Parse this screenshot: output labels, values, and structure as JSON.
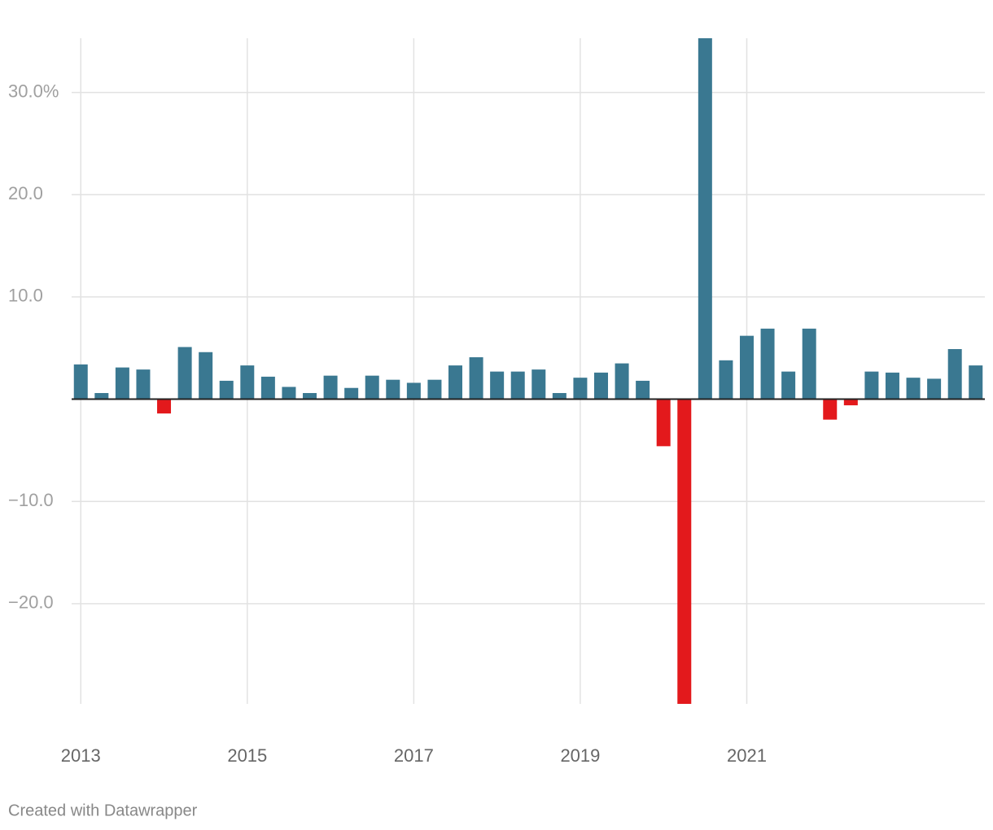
{
  "chart_data": {
    "type": "bar",
    "x": [
      2013,
      2013.25,
      2013.5,
      2013.75,
      2014,
      2014.25,
      2014.5,
      2014.75,
      2015,
      2015.25,
      2015.5,
      2015.75,
      2016,
      2016.25,
      2016.5,
      2016.75,
      2017,
      2017.25,
      2017.5,
      2017.75,
      2018,
      2018.25,
      2018.5,
      2018.75,
      2019,
      2019.25,
      2019.5,
      2019.75,
      2020,
      2020.25,
      2020.5,
      2020.75,
      2021,
      2021.25,
      2021.5,
      2021.75,
      2022,
      2022.25,
      2022.5,
      2022.75,
      2023,
      2023.25,
      2023.5,
      2023.75
    ],
    "values": [
      3.4,
      0.6,
      3.1,
      2.9,
      -1.4,
      5.1,
      4.6,
      1.8,
      3.3,
      2.2,
      1.2,
      0.6,
      2.3,
      1.1,
      2.3,
      1.9,
      1.6,
      1.9,
      3.3,
      4.1,
      2.7,
      2.7,
      2.9,
      0.6,
      2.1,
      2.6,
      3.5,
      1.8,
      -4.6,
      -29.8,
      35.3,
      3.8,
      6.2,
      6.9,
      2.7,
      6.9,
      -2.0,
      -0.6,
      2.7,
      2.6,
      2.1,
      2.0,
      4.9,
      3.3
    ],
    "positive_color": "#3a7891",
    "negative_color": "#e3191c",
    "xlim": [
      2012.89,
      2023.86
    ],
    "xticks": [
      2013,
      2015,
      2017,
      2019,
      2021
    ],
    "ylim": [
      -29.8,
      35.3
    ],
    "yticks": [
      {
        "value": 30,
        "label": "30.0%"
      },
      {
        "value": 20,
        "label": "20.0"
      },
      {
        "value": 10,
        "label": "10.0"
      },
      {
        "value": -10,
        "label": "−10.0"
      },
      {
        "value": -20,
        "label": "−20.0"
      }
    ],
    "grid": true,
    "footer": "Created with Datawrapper"
  }
}
